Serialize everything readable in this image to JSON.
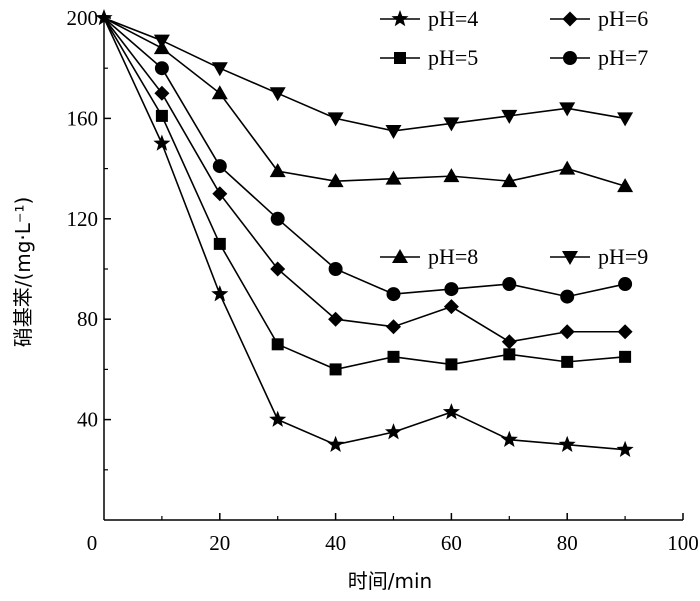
{
  "chart_data": {
    "type": "line",
    "xlabel": "时间/min",
    "ylabel": "硝基苯/(mg·L⁻¹)",
    "xlim": [
      0,
      100
    ],
    "ylim": [
      0,
      200
    ],
    "x_ticks": [
      "0",
      "20",
      "40",
      "60",
      "80",
      "100"
    ],
    "y_ticks": [
      "40",
      "80",
      "120",
      "160",
      "200"
    ],
    "grid": false,
    "x": [
      0,
      10,
      20,
      30,
      40,
      50,
      60,
      70,
      80,
      90
    ],
    "series": [
      {
        "name": "pH=4",
        "marker": "star",
        "values": [
          200,
          150,
          90,
          40,
          30,
          35,
          43,
          32,
          30,
          28
        ]
      },
      {
        "name": "pH=5",
        "marker": "square",
        "values": [
          200,
          161,
          110,
          70,
          60,
          65,
          62,
          66,
          63,
          65
        ]
      },
      {
        "name": "pH=6",
        "marker": "diamond",
        "values": [
          200,
          170,
          130,
          100,
          80,
          77,
          85,
          71,
          75,
          75
        ]
      },
      {
        "name": "pH=7",
        "marker": "circle",
        "values": [
          200,
          180,
          141,
          120,
          100,
          90,
          92,
          94,
          89,
          94
        ]
      },
      {
        "name": "pH=8",
        "marker": "triangle-up",
        "values": [
          200,
          188,
          170,
          139,
          135,
          136,
          137,
          135,
          140,
          133
        ]
      },
      {
        "name": "pH=9",
        "marker": "triangle-down",
        "values": [
          200,
          191,
          180,
          170,
          160,
          155,
          158,
          161,
          164,
          160
        ]
      }
    ],
    "legend": [
      {
        "label": "pH=4",
        "marker": "star",
        "position": "top-center"
      },
      {
        "label": "pH=6",
        "marker": "diamond",
        "position": "top-right"
      },
      {
        "label": "pH=5",
        "marker": "square",
        "position": "top-center"
      },
      {
        "label": "pH=7",
        "marker": "circle",
        "position": "top-right"
      },
      {
        "label": "pH=8",
        "marker": "triangle-up",
        "position": "middle-right"
      },
      {
        "label": "pH=9",
        "marker": "triangle-down",
        "position": "middle-right"
      }
    ]
  }
}
